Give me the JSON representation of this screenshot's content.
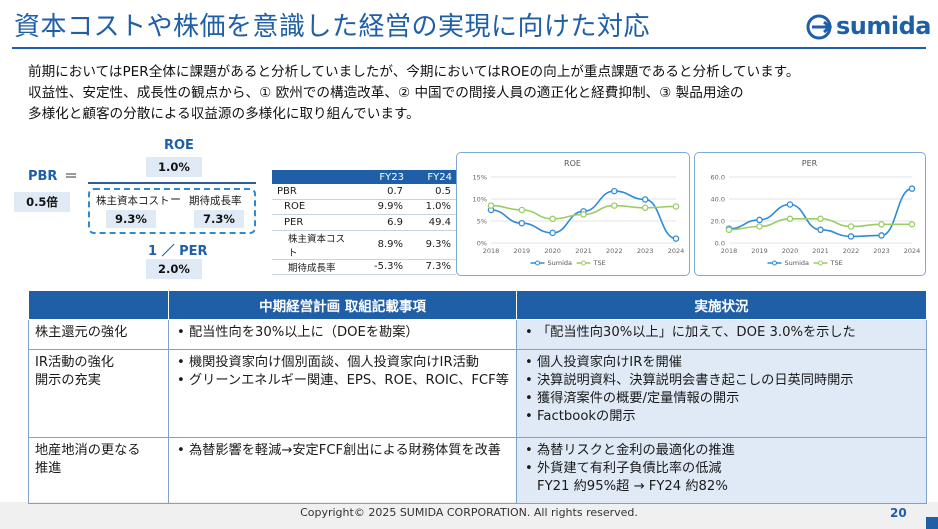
{
  "header": {
    "title": "資本コストや株価を意識した経営の実現に向けた対応",
    "logo_text": "sumida"
  },
  "intro": [
    "前期においてはPER全体に課題があると分析していましたが、今期においてはROEの向上が重点課題であると分析しています。",
    "収益性、安定性、成長性の観点から、① 欧州での構造改革、② 中国での間接人員の適正化と経費抑制、③ 製品用途の",
    "多様化と顧客の分散による収益源の多様化に取り組んでいます。"
  ],
  "formula": {
    "pbr_label": "PBR",
    "equals": "＝",
    "pbr_value": "0.5倍",
    "roe_label": "ROE",
    "roe_value": "1.0%",
    "cost_label": "株主資本コスト",
    "minus": "ー",
    "growth_label": "期待成長率",
    "cost_value": "9.3%",
    "growth_value": "7.3%",
    "per_label": "1 ／ PER",
    "per_value": "2.0%"
  },
  "stats_table": {
    "headers": [
      "",
      "FY23",
      "FY24"
    ],
    "rows": [
      [
        "PBR",
        "0.7",
        "0.5"
      ],
      [
        "ROE",
        "9.9%",
        "1.0%"
      ],
      [
        "PER",
        "6.9",
        "49.4"
      ],
      [
        "株主資本コスト",
        "8.9%",
        "9.3%"
      ],
      [
        "期待成長率",
        "-5.3%",
        "7.3%"
      ]
    ]
  },
  "chart_data": [
    {
      "type": "line",
      "title": "ROE",
      "x": [
        "2018",
        "2019",
        "2020",
        "2021",
        "2022",
        "2023",
        "2024"
      ],
      "yticks": [
        "0%",
        "5%",
        "10%",
        "15%"
      ],
      "ylim": [
        0,
        15
      ],
      "series": [
        {
          "name": "Sumida",
          "values": [
            7.5,
            4.5,
            2.3,
            7.2,
            11.8,
            9.9,
            1.0
          ],
          "color": "#2e8bd8"
        },
        {
          "name": "TSE",
          "values": [
            8.5,
            7.5,
            5.5,
            6.5,
            8.5,
            8.0,
            8.3
          ],
          "color": "#9ccc65"
        }
      ],
      "legend": "bottom",
      "grid": true
    },
    {
      "type": "line",
      "title": "PER",
      "x": [
        "2018",
        "2019",
        "2020",
        "2021",
        "2022",
        "2023",
        "2024"
      ],
      "yticks": [
        "0.0",
        "20.0",
        "40.0",
        "60.0"
      ],
      "ylim": [
        0,
        60
      ],
      "series": [
        {
          "name": "Sumida",
          "values": [
            13,
            21,
            35,
            12,
            6,
            6.9,
            49.4
          ],
          "color": "#2e8bd8"
        },
        {
          "name": "TSE",
          "values": [
            12,
            15,
            22,
            22,
            15,
            17,
            17
          ],
          "color": "#9ccc65"
        }
      ],
      "legend": "bottom",
      "grid": true
    }
  ],
  "main_table": {
    "headers": [
      "",
      "中期経営計画 取組記載事項",
      "実施状況"
    ],
    "rows": [
      {
        "topic": [
          "株主還元の強化"
        ],
        "plan": [
          "配当性向を30%以上に（DOEを勘案）"
        ],
        "status": [
          "「配当性向30%以上」に加えて、DOE 3.0%を示した"
        ]
      },
      {
        "topic": [
          "IR活動の強化",
          "開示の充実"
        ],
        "plan": [
          "機関投資家向け個別面談、個人投資家向けIR活動",
          "グリーンエネルギー関連、EPS、ROE、ROIC、FCF等"
        ],
        "status": [
          "個人投資家向けIRを開催",
          "決算説明資料、決算説明会書き起こしの日英同時開示",
          "獲得済案件の概要/定量情報の開示",
          "Factbookの開示"
        ]
      },
      {
        "topic": [
          "地産地消の更なる",
          "推進"
        ],
        "plan": [
          "為替影響を軽減→安定FCF創出による財務体質を改善"
        ],
        "status": [
          "為替リスクと金利の最適化の推進",
          "外貨建て有利子負債比率の低減"
        ],
        "status_sub": "FY21 約95%超 → FY24 約82%"
      }
    ]
  },
  "footer": {
    "copyright": "Copyright© 2025 SUMIDA CORPORATION. All rights reserved.",
    "page": "20"
  }
}
